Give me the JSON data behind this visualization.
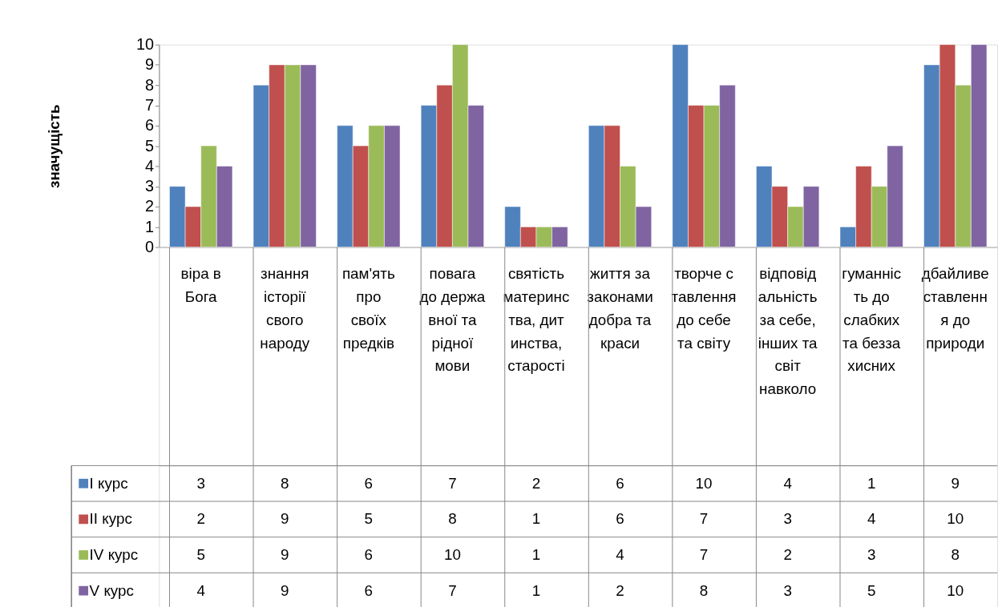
{
  "chart_data": {
    "type": "bar",
    "ylabel": "значущість",
    "categories": [
      "віра в Бога",
      "знання історії свого народу",
      "пам'ять про своїх предків",
      "повага до державної та рідної мови",
      "святість материнства, дитинства, старості",
      "життя за законами добра та краси",
      "творче ставлення до себе та світу",
      "відповідальність за себе, інших та світ навколо",
      "гуманність до слабких та беззахисних",
      "дбайливе ставлення до природи"
    ],
    "series": [
      {
        "name": "I курс",
        "color": "#4f81bd",
        "values": [
          3,
          8,
          6,
          7,
          2,
          6,
          10,
          4,
          1,
          9
        ]
      },
      {
        "name": "II курс",
        "color": "#c0504d",
        "values": [
          2,
          9,
          5,
          8,
          1,
          6,
          7,
          3,
          4,
          10
        ]
      },
      {
        "name": "IV курс",
        "color": "#9bbb59",
        "values": [
          5,
          9,
          6,
          10,
          1,
          4,
          7,
          2,
          3,
          8
        ]
      },
      {
        "name": "V курс",
        "color": "#8064a2",
        "values": [
          4,
          9,
          6,
          7,
          1,
          2,
          8,
          3,
          5,
          10
        ]
      }
    ],
    "ylim": [
      0,
      10
    ],
    "yticks": [
      0,
      1,
      2,
      3,
      4,
      5,
      6,
      7,
      8,
      9,
      10
    ],
    "grid": false,
    "legend": "bottom",
    "data_labels": true
  }
}
